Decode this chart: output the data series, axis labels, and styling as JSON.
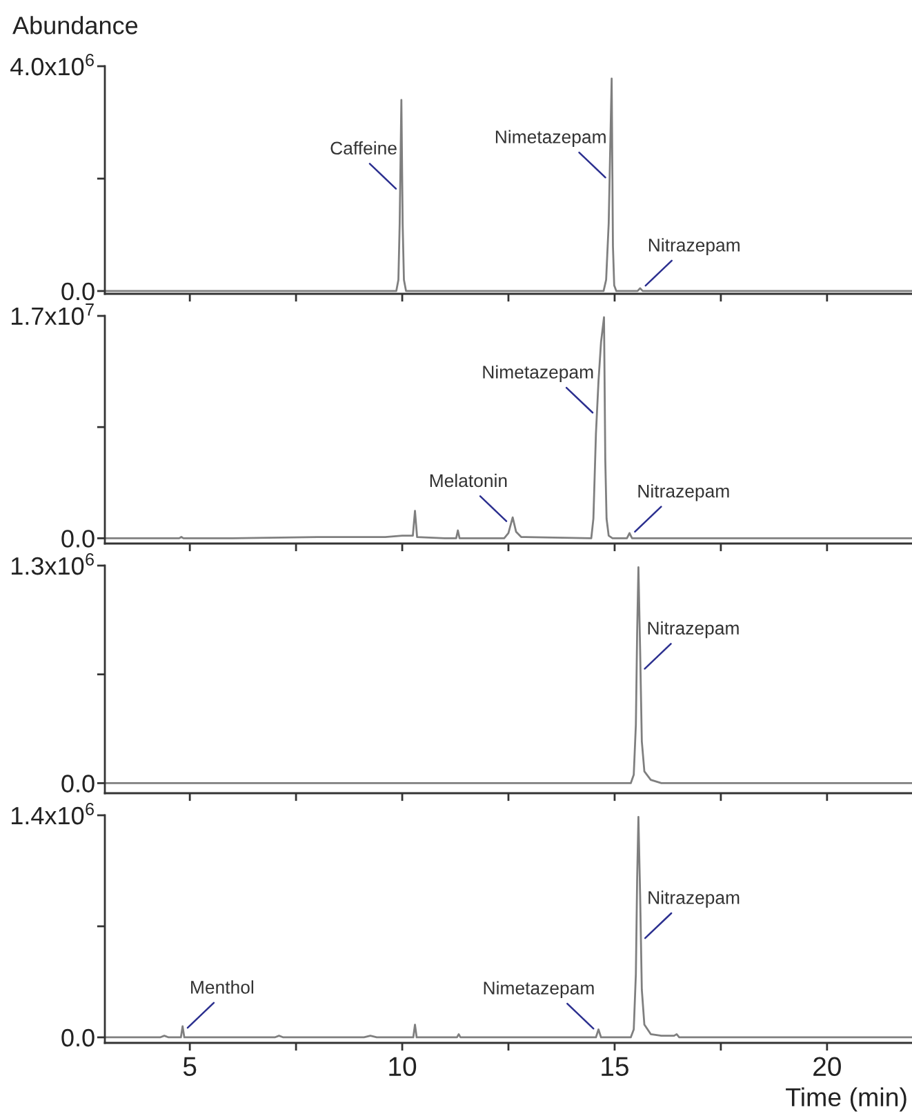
{
  "chart_data": [
    {
      "type": "line",
      "ylabel": "Abundance",
      "color": "#7f7f7f",
      "tick_labels": "y",
      "x": [
        3.0,
        9.86,
        9.91,
        9.94,
        9.98,
        10.01,
        10.04,
        10.09,
        14.74,
        14.8,
        14.86,
        14.93,
        14.96,
        14.99,
        15.04,
        15.54,
        15.6,
        15.66,
        22.0
      ],
      "values": [
        0,
        0,
        200000,
        1200000,
        3400000,
        1200000,
        200000,
        0,
        0,
        200000,
        1200000,
        3780000,
        800000,
        100000,
        0,
        0,
        50000,
        0,
        0
      ],
      "xlim": [
        3,
        22
      ],
      "xticks": [
        5,
        {
          "value": 7.5,
          "label": null
        },
        10,
        {
          "value": 12.5,
          "label": null
        },
        15,
        {
          "value": 17.5,
          "label": null
        },
        20
      ],
      "ylim": [
        -50000,
        4000000
      ],
      "yticks": [
        {
          "value": 0,
          "label": "0.0"
        },
        {
          "value": 2000000,
          "label": null
        },
        {
          "value": 4000000,
          "label": "4.0x10$^{6}$"
        }
      ],
      "annotations": [
        {
          "text": "Caffeine",
          "x": 9.95,
          "y": 1750000
        },
        {
          "text": "Nimetazepam",
          "x": 14.88,
          "y": 1950000
        },
        {
          "text": "Nitrazepam",
          "x": 15.63,
          "y": 25000
        }
      ]
    },
    {
      "type": "line",
      "color": "#7f7f7f",
      "tick_labels": "y",
      "x": [
        3.0,
        4.75,
        4.8,
        4.85,
        6.0,
        8.0,
        9.0,
        9.6,
        10.0,
        10.25,
        10.3,
        10.35,
        11.0,
        11.27,
        11.31,
        11.35,
        12.4,
        12.5,
        12.6,
        12.68,
        12.8,
        14.45,
        14.5,
        14.56,
        14.62,
        14.68,
        14.75,
        14.78,
        14.81,
        14.86,
        14.95,
        15.29,
        15.35,
        15.41,
        22.0
      ],
      "values": [
        0,
        0,
        100000,
        0,
        0,
        100000,
        100000,
        100000,
        200000,
        200000,
        2100000,
        100000,
        0,
        0,
        600000,
        0,
        0,
        400000,
        1600000,
        500000,
        100000,
        0,
        1500000,
        8000000,
        12000000,
        15000000,
        16900000,
        6000000,
        1500000,
        200000,
        0,
        0,
        400000,
        0,
        0
      ],
      "xlim": [
        3,
        22
      ],
      "xticks": [
        5,
        {
          "value": 7.5,
          "label": null
        },
        10,
        {
          "value": 12.5,
          "label": null
        },
        15,
        {
          "value": 17.5,
          "label": null
        },
        20
      ],
      "ylim": [
        -400000,
        17000000
      ],
      "yticks": [
        {
          "value": 0,
          "label": "0.0"
        },
        {
          "value": 8500000,
          "label": null
        },
        {
          "value": 17000000,
          "label": "1.7x10$^{7}$"
        }
      ],
      "annotations": [
        {
          "text": "Melatonin",
          "x": 12.55,
          "y": 1000000
        },
        {
          "text": "Nimetazepam",
          "x": 14.58,
          "y": 9300000
        },
        {
          "text": "Nitrazepam",
          "x": 15.38,
          "y": 200000
        }
      ]
    },
    {
      "type": "line",
      "color": "#7f7f7f",
      "tick_labels": "y",
      "x": [
        3.0,
        15.38,
        15.45,
        15.5,
        15.53,
        15.56,
        15.6,
        15.64,
        15.7,
        15.85,
        16.1,
        22.0
      ],
      "values": [
        0,
        0,
        50000,
        350000,
        900000,
        1290000,
        800000,
        250000,
        70000,
        20000,
        0,
        0
      ],
      "xlim": [
        3,
        22
      ],
      "xticks": [
        5,
        {
          "value": 7.5,
          "label": null
        },
        10,
        {
          "value": 12.5,
          "label": null
        },
        15,
        {
          "value": 17.5,
          "label": null
        },
        20
      ],
      "ylim": [
        -60000,
        1300000
      ],
      "yticks": [
        {
          "value": 0,
          "label": "0.0"
        },
        {
          "value": 650000,
          "label": null
        },
        {
          "value": 1300000,
          "label": "1.3x10$^{6}$"
        }
      ],
      "annotations": [
        {
          "text": "Nitrazepam",
          "x": 15.61,
          "y": 660000
        }
      ]
    },
    {
      "type": "line",
      "xlabel": "Time (min)",
      "color": "#7f7f7f",
      "x": [
        3.0,
        4.3,
        4.4,
        4.5,
        4.79,
        4.83,
        4.87,
        7.0,
        7.1,
        7.2,
        9.1,
        9.25,
        9.4,
        10.26,
        10.3,
        10.34,
        11.29,
        11.33,
        11.37,
        14.56,
        14.62,
        14.68,
        15.38,
        15.45,
        15.5,
        15.53,
        15.56,
        15.6,
        15.64,
        15.7,
        15.85,
        16.1,
        16.4,
        16.46,
        16.52,
        22.0
      ],
      "values": [
        0,
        0,
        10000,
        0,
        0,
        70000,
        0,
        0,
        10000,
        0,
        0,
        10000,
        0,
        0,
        80000,
        0,
        0,
        20000,
        0,
        0,
        50000,
        0,
        0,
        50000,
        400000,
        1000000,
        1390000,
        900000,
        300000,
        80000,
        20000,
        10000,
        10000,
        20000,
        0,
        0
      ],
      "xlim": [
        3,
        22
      ],
      "xticks": [
        5,
        {
          "value": 7.5,
          "label": null
        },
        10,
        {
          "value": 12.5,
          "label": null
        },
        15,
        {
          "value": 17.5,
          "label": null
        },
        20
      ],
      "ylim": [
        -35000,
        1400000
      ],
      "yticks": [
        {
          "value": 0,
          "label": "0.0"
        },
        {
          "value": 700000,
          "label": null
        },
        {
          "value": 1400000,
          "label": "1.4x10$^{6}$"
        }
      ],
      "annotations": [
        {
          "text": "Menthol",
          "x": 4.85,
          "y": 35000
        },
        {
          "text": "Nimetazepam",
          "x": 14.6,
          "y": 30000
        },
        {
          "text": "Nitrazepam",
          "x": 15.62,
          "y": 600000
        }
      ]
    }
  ]
}
